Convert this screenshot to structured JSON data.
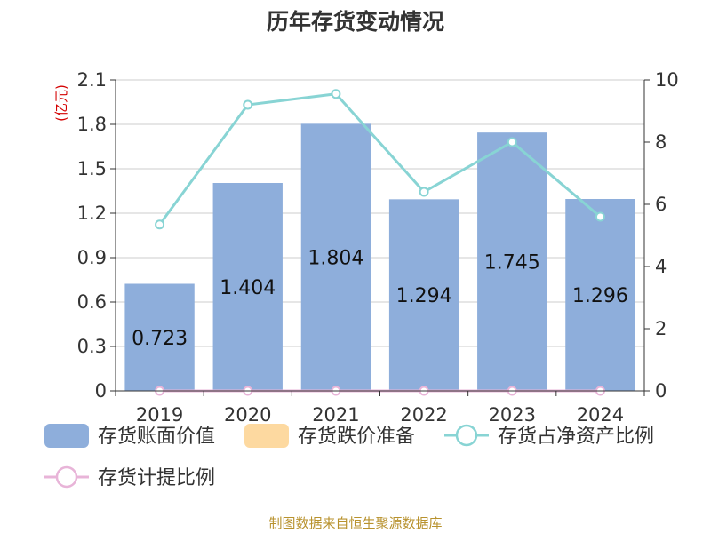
{
  "chart_data": {
    "type": "bar",
    "title": "历年存货变动情况",
    "categories": [
      "2019",
      "2020",
      "2021",
      "2022",
      "2023",
      "2024"
    ],
    "y_left": {
      "unit": "(亿元)",
      "range": [
        0,
        2.1
      ],
      "ticks": [
        "0",
        "0.3",
        "0.6",
        "0.9",
        "1.2",
        "1.5",
        "1.8",
        "2.1"
      ]
    },
    "y_right": {
      "range": [
        0,
        10
      ],
      "ticks": [
        "0",
        "2",
        "4",
        "6",
        "8",
        "10"
      ]
    },
    "series": [
      {
        "name": "存货账面价值",
        "type": "bar",
        "axis": "left",
        "color": "#8eaedb",
        "values": [
          0.723,
          1.404,
          1.804,
          1.294,
          1.745,
          1.296
        ],
        "labels": [
          "0.723",
          "1.404",
          "1.804",
          "1.294",
          "1.745",
          "1.296"
        ]
      },
      {
        "name": "存货跌价准备",
        "type": "bar",
        "axis": "left",
        "color": "#fdd9a0",
        "values": [
          0,
          0,
          0,
          0,
          0,
          0
        ]
      },
      {
        "name": "存货占净资产比例",
        "type": "line",
        "axis": "right",
        "color": "#88d4d4",
        "values": [
          5.35,
          9.2,
          9.55,
          6.4,
          8.0,
          5.6
        ]
      },
      {
        "name": "存货计提比例",
        "type": "line",
        "axis": "right",
        "color": "#e8b4d8",
        "values": [
          0,
          0,
          0,
          0,
          0,
          0
        ]
      }
    ],
    "grid": true,
    "legend_position": "bottom"
  },
  "source": "制图数据来自恒生聚源数据库"
}
